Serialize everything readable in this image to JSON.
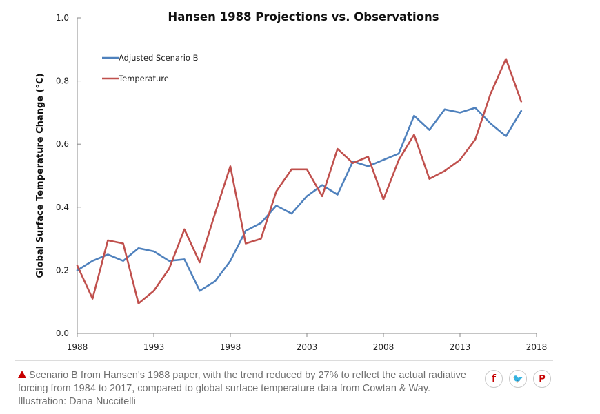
{
  "chart_data": {
    "type": "line",
    "title": "Hansen 1988 Projections vs. Observations",
    "ylabel": "Global Surface Temperature Change (°C)",
    "xlim": [
      1988,
      2018
    ],
    "ylim": [
      0.0,
      1.0
    ],
    "x_ticks": [
      "1988",
      "1993",
      "1998",
      "2003",
      "2008",
      "2013",
      "2018"
    ],
    "x_tick_values": [
      1988,
      1993,
      1998,
      2003,
      2008,
      2013,
      2018
    ],
    "y_ticks": [
      "0.0",
      "0.2",
      "0.4",
      "0.6",
      "0.8",
      "1.0"
    ],
    "y_tick_values": [
      0.0,
      0.2,
      0.4,
      0.6,
      0.8,
      1.0
    ],
    "legend_position": "top-left",
    "grid": false,
    "x": [
      1988,
      1989,
      1990,
      1991,
      1992,
      1993,
      1994,
      1995,
      1996,
      1997,
      1998,
      1999,
      2000,
      2001,
      2002,
      2003,
      2004,
      2005,
      2006,
      2007,
      2008,
      2009,
      2010,
      2011,
      2012,
      2013,
      2014,
      2015,
      2016,
      2017
    ],
    "series": [
      {
        "name": "Adjusted Scenario B",
        "color": "#4f81bd",
        "values": [
          0.2,
          0.23,
          0.25,
          0.23,
          0.27,
          0.26,
          0.23,
          0.235,
          0.135,
          0.165,
          0.23,
          0.325,
          0.35,
          0.405,
          0.38,
          0.435,
          0.47,
          0.44,
          0.545,
          0.53,
          0.55,
          0.57,
          0.69,
          0.645,
          0.71,
          0.7,
          0.715,
          0.665,
          0.625,
          0.705
        ]
      },
      {
        "name": "Temperature",
        "color": "#c0504d",
        "values": [
          0.215,
          0.11,
          0.295,
          0.285,
          0.095,
          0.135,
          0.205,
          0.33,
          0.225,
          0.38,
          0.53,
          0.285,
          0.3,
          0.45,
          0.52,
          0.52,
          0.435,
          0.585,
          0.54,
          0.56,
          0.425,
          0.55,
          0.63,
          0.49,
          0.515,
          0.55,
          0.615,
          0.76,
          0.87,
          0.735
        ]
      }
    ]
  },
  "caption": {
    "text": "Scenario B from Hansen's 1988 paper, with the trend reduced by 27% to reflect the actual radiative forcing from 1984 to 2017, compared to global surface temperature data from Cowtan & Way. Illustration: Dana Nuccitelli",
    "triangle_color": "#c70000"
  },
  "share": {
    "facebook": "f",
    "twitter": "🐦",
    "pinterest": "P"
  },
  "share_icons": [
    "facebook-icon",
    "twitter-icon",
    "pinterest-icon"
  ]
}
